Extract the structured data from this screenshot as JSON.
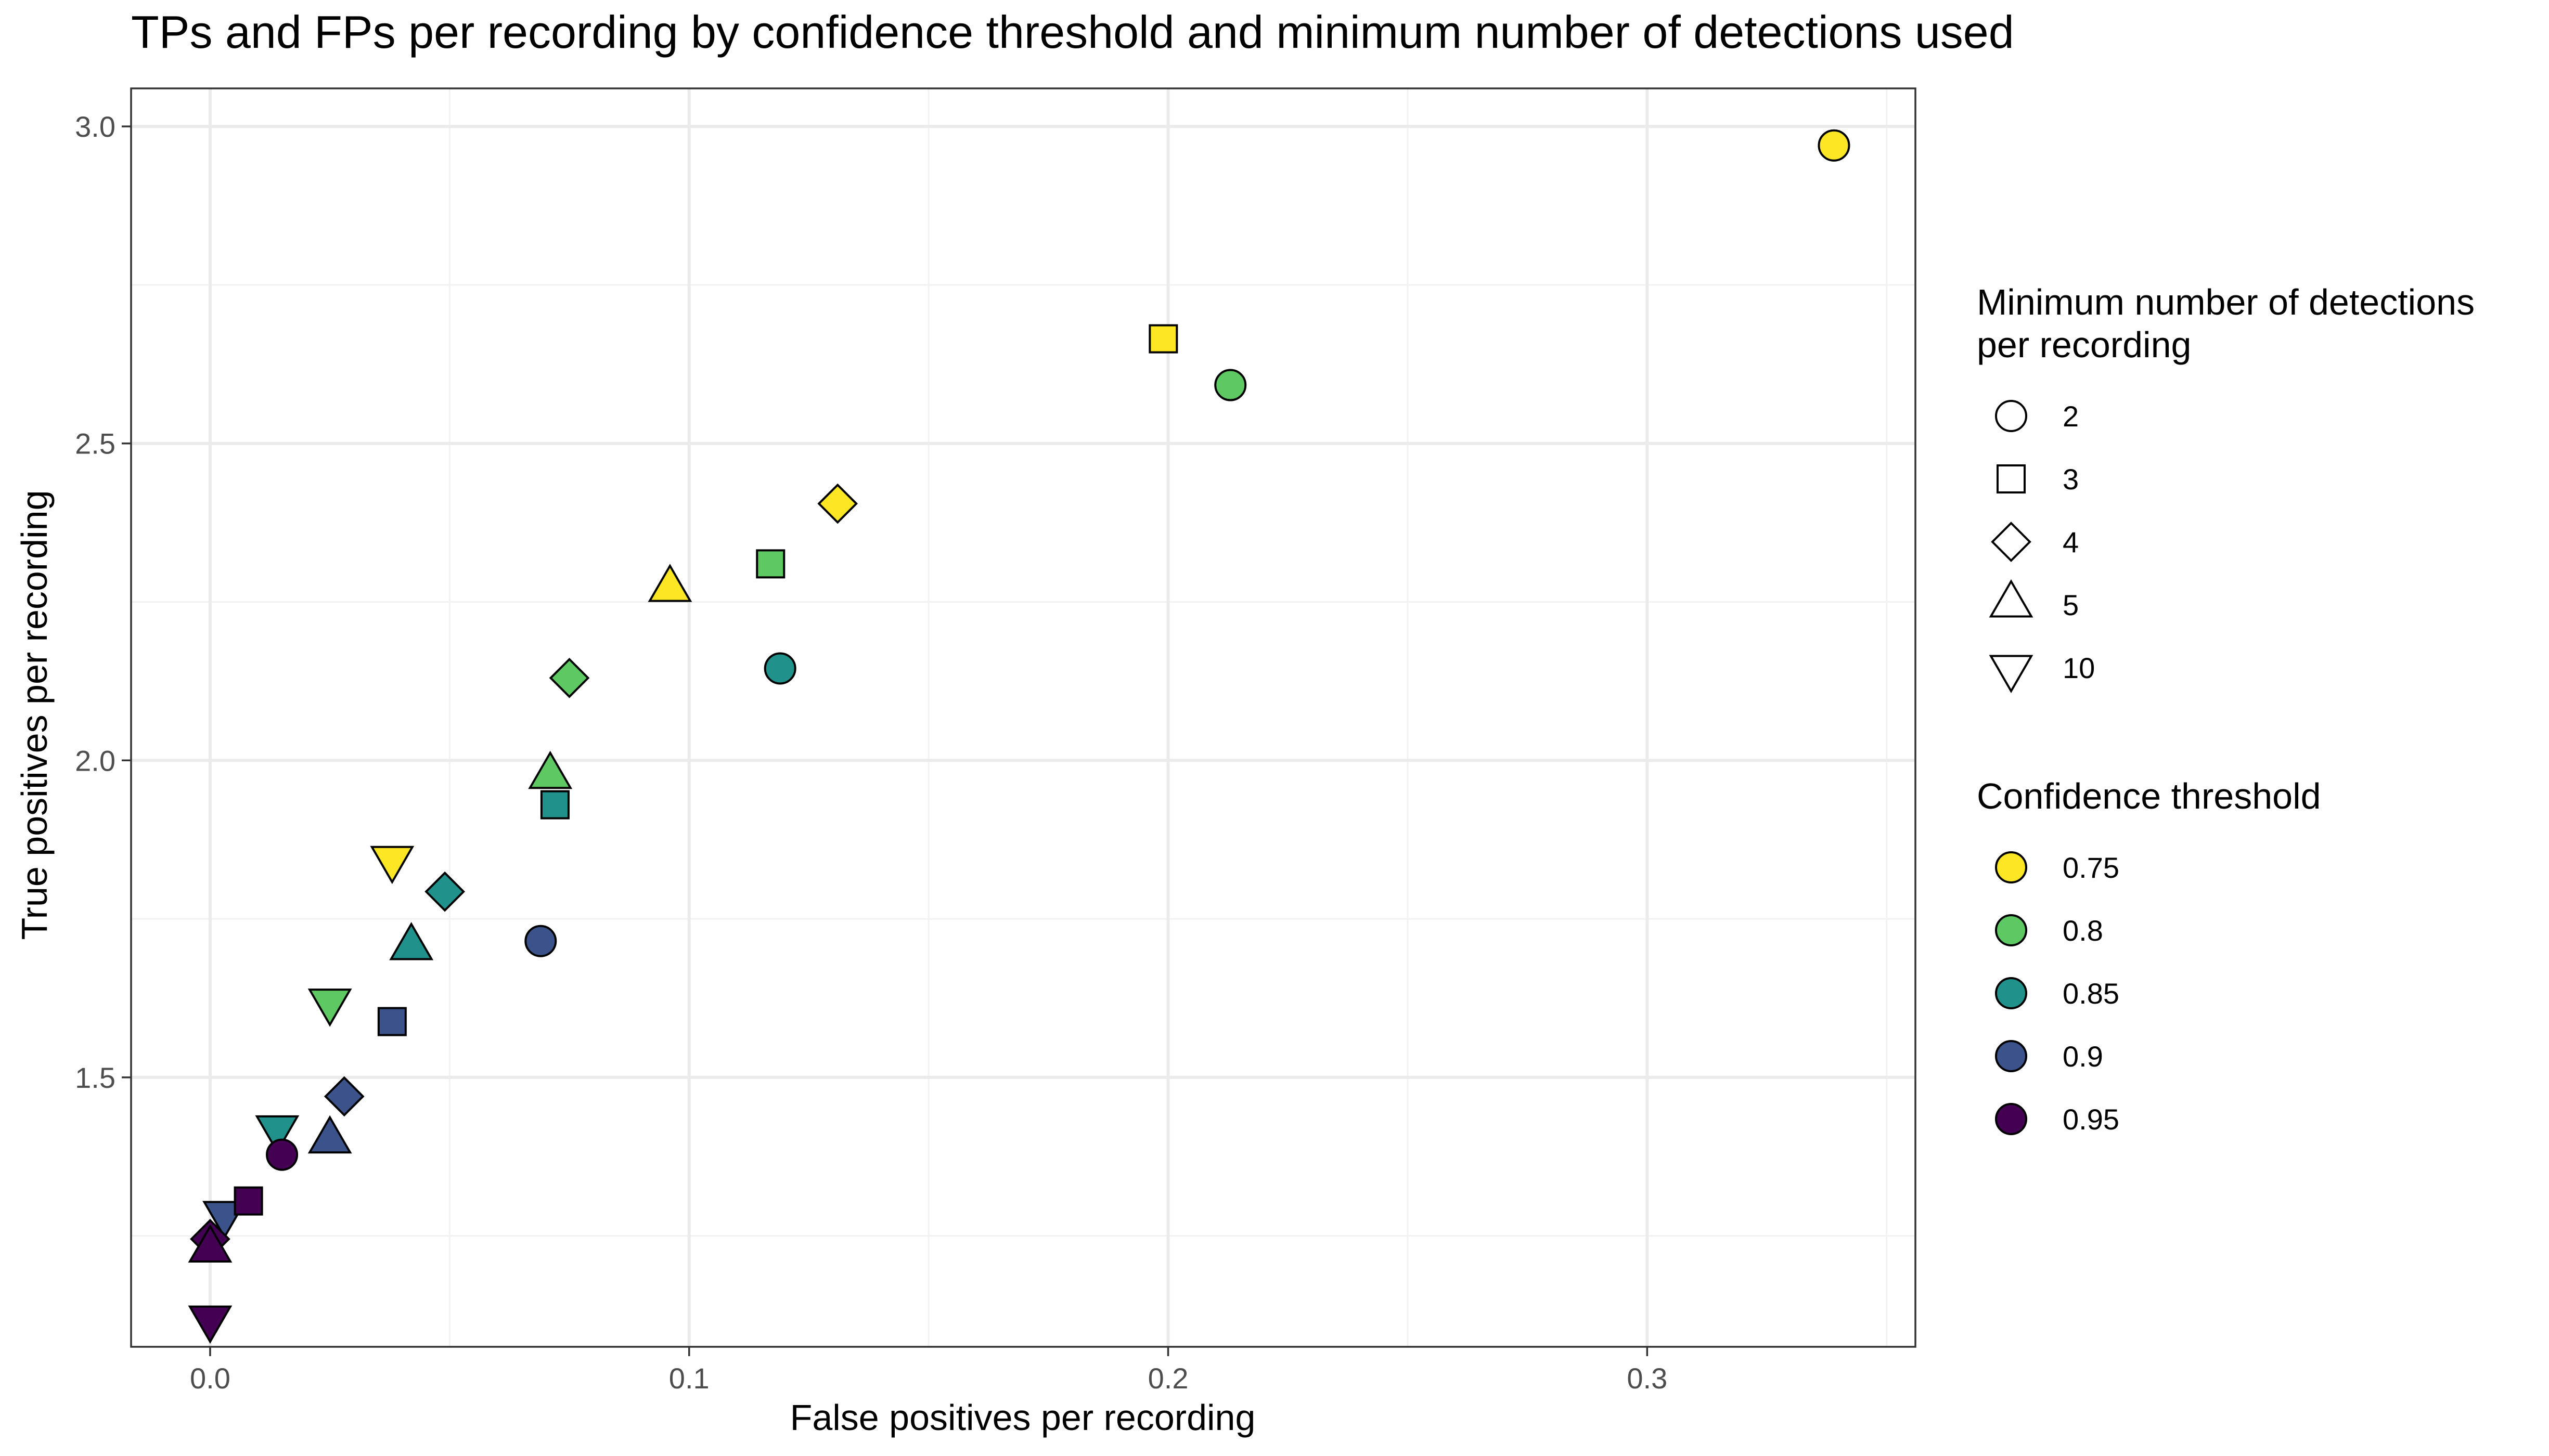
{
  "chart_data": {
    "type": "scatter",
    "title": "TPs and FPs per recording by confidence threshold and minimum number of detections used",
    "xlabel": "False positives per recording",
    "ylabel": "True positives per recording",
    "xlim": [
      -0.0165,
      0.356
    ],
    "ylim": [
      1.075,
      3.06
    ],
    "x_ticks": [
      0.0,
      0.1,
      0.2,
      0.3
    ],
    "x_tick_labels": [
      "0.0",
      "0.1",
      "0.2",
      "0.3"
    ],
    "y_ticks": [
      1.5,
      2.0,
      2.5,
      3.0
    ],
    "y_tick_labels": [
      "1.5",
      "2.0",
      "2.5",
      "3.0"
    ],
    "x_minor": [
      0.05,
      0.15,
      0.25,
      0.35
    ],
    "y_minor": [
      1.25,
      1.75,
      2.25,
      2.75
    ],
    "grid": true,
    "legend_position": "right",
    "shape_legend": {
      "title_lines": [
        "Minimum number of detections",
        "per recording"
      ],
      "entries": [
        {
          "label": "2",
          "shape": "circle"
        },
        {
          "label": "3",
          "shape": "square"
        },
        {
          "label": "4",
          "shape": "diamond"
        },
        {
          "label": "5",
          "shape": "triangle-up"
        },
        {
          "label": "10",
          "shape": "triangle-down"
        }
      ]
    },
    "color_legend": {
      "title": "Confidence threshold",
      "entries": [
        {
          "label": "0.75",
          "color": "#FDE725"
        },
        {
          "label": "0.8",
          "color": "#5EC962"
        },
        {
          "label": "0.85",
          "color": "#21918C"
        },
        {
          "label": "0.9",
          "color": "#3B528B"
        },
        {
          "label": "0.95",
          "color": "#440154"
        }
      ]
    },
    "points": [
      {
        "threshold": "0.75",
        "min_detections": "2",
        "x": 0.339,
        "y": 2.97
      },
      {
        "threshold": "0.75",
        "min_detections": "3",
        "x": 0.199,
        "y": 2.665
      },
      {
        "threshold": "0.75",
        "min_detections": "4",
        "x": 0.131,
        "y": 2.405
      },
      {
        "threshold": "0.75",
        "min_detections": "5",
        "x": 0.096,
        "y": 2.27
      },
      {
        "threshold": "0.75",
        "min_detections": "10",
        "x": 0.038,
        "y": 1.845
      },
      {
        "threshold": "0.8",
        "min_detections": "2",
        "x": 0.213,
        "y": 2.592
      },
      {
        "threshold": "0.8",
        "min_detections": "3",
        "x": 0.117,
        "y": 2.31
      },
      {
        "threshold": "0.8",
        "min_detections": "4",
        "x": 0.075,
        "y": 2.13
      },
      {
        "threshold": "0.8",
        "min_detections": "5",
        "x": 0.071,
        "y": 1.975
      },
      {
        "threshold": "0.8",
        "min_detections": "10",
        "x": 0.025,
        "y": 1.62
      },
      {
        "threshold": "0.85",
        "min_detections": "2",
        "x": 0.119,
        "y": 2.145
      },
      {
        "threshold": "0.85",
        "min_detections": "3",
        "x": 0.072,
        "y": 1.93
      },
      {
        "threshold": "0.85",
        "min_detections": "4",
        "x": 0.049,
        "y": 1.793
      },
      {
        "threshold": "0.85",
        "min_detections": "5",
        "x": 0.042,
        "y": 1.705
      },
      {
        "threshold": "0.85",
        "min_detections": "10",
        "x": 0.014,
        "y": 1.42
      },
      {
        "threshold": "0.9",
        "min_detections": "2",
        "x": 0.069,
        "y": 1.715
      },
      {
        "threshold": "0.9",
        "min_detections": "3",
        "x": 0.038,
        "y": 1.588
      },
      {
        "threshold": "0.9",
        "min_detections": "4",
        "x": 0.028,
        "y": 1.47
      },
      {
        "threshold": "0.9",
        "min_detections": "5",
        "x": 0.025,
        "y": 1.4
      },
      {
        "threshold": "0.9",
        "min_detections": "10",
        "x": 0.003,
        "y": 1.285
      },
      {
        "threshold": "0.95",
        "min_detections": "2",
        "x": 0.015,
        "y": 1.378
      },
      {
        "threshold": "0.95",
        "min_detections": "3",
        "x": 0.008,
        "y": 1.305
      },
      {
        "threshold": "0.95",
        "min_detections": "4",
        "x": 0.0,
        "y": 1.245
      },
      {
        "threshold": "0.95",
        "min_detections": "5",
        "x": 0.0,
        "y": 1.228
      },
      {
        "threshold": "0.95",
        "min_detections": "10",
        "x": 0.0,
        "y": 1.12
      }
    ]
  }
}
